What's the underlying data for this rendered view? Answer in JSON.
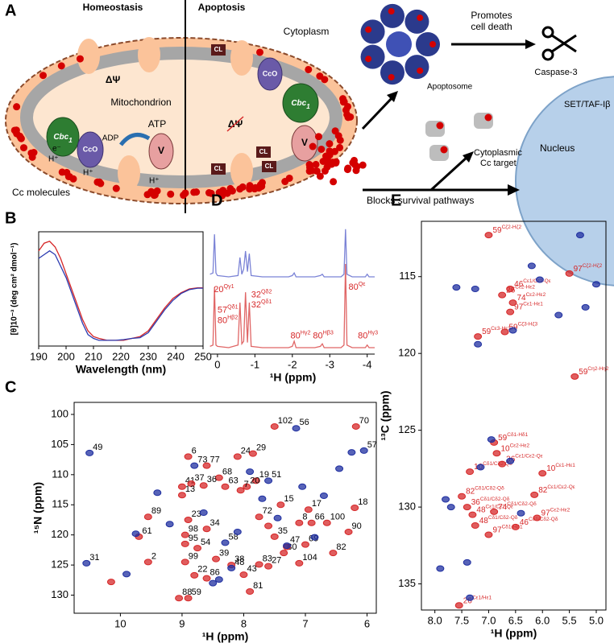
{
  "diagram": {
    "panel": "A",
    "left_title": "Homeostasis",
    "right_title": "Apoptosis",
    "cytoplasm": "Cytoplasm",
    "mitochondrion": "Mitochondrion",
    "delta_psi": "ΔΨ",
    "cbc1": {
      "text": "Cbc",
      "sub": "1"
    },
    "cco": "CcO",
    "v": "V",
    "cl": "CL",
    "adp": "ADP",
    "atp": "ATP",
    "h_plus": "H⁺",
    "e_minus": "e⁻",
    "cc_molecules": "Cc molecules",
    "apoptosome": "Apoptosome",
    "promotes": [
      "Promotes",
      "cell death"
    ],
    "caspase": "Caspase-3",
    "set": "SET/TAF-Iβ",
    "nucleus": "Nucleus",
    "cyto_target": [
      "Cytoplasmic",
      "Cc target"
    ],
    "blocks": "Blocks survival pathways"
  },
  "chart_data": [
    {
      "type": "line",
      "panel": "B",
      "xlabel": "Wavelength (nm)",
      "ylabel": "[θ]10⁻³ (deg cm² dmol⁻¹)",
      "xlim": [
        190,
        250
      ],
      "xticks": [
        190,
        200,
        210,
        220,
        230,
        240,
        250
      ],
      "ylim": [
        -15,
        15
      ],
      "x": [
        190,
        192,
        194,
        196,
        198,
        200,
        202,
        204,
        206,
        208,
        210,
        212,
        215,
        218,
        221,
        224,
        227,
        230,
        233,
        236,
        239,
        242,
        245,
        248,
        250
      ],
      "series": [
        {
          "color": "#d62728",
          "values": [
            10,
            12,
            12.5,
            11,
            8,
            4,
            0,
            -4,
            -8,
            -11,
            -12.5,
            -13,
            -13.5,
            -13.5,
            -13.5,
            -13,
            -12.5,
            -11,
            -8,
            -5,
            -2.5,
            -1,
            0,
            0.3,
            0.3
          ]
        },
        {
          "color": "#2b3ab0",
          "values": [
            8,
            9,
            10,
            9,
            6,
            3,
            -1,
            -5,
            -9,
            -12,
            -13,
            -13.5,
            -13.5,
            -13.5,
            -13.3,
            -13,
            -12.8,
            -11.5,
            -8.5,
            -5.5,
            -3,
            -1.2,
            -0.2,
            0.2,
            0.2
          ]
        }
      ]
    },
    {
      "type": "scatter",
      "panel": "C",
      "xlabel": "¹H (ppm)",
      "ylabel": "¹⁵N (ppm)",
      "xlim": [
        10.75,
        5.85
      ],
      "xticks": [
        10,
        9,
        8,
        7,
        6
      ],
      "ylim": [
        98,
        133
      ],
      "yticks": [
        100,
        105,
        110,
        115,
        120,
        125,
        130
      ],
      "series": [
        {
          "color": "#d62728",
          "x": [
            7.5,
            6.18,
            8.9,
            8.6,
            8.1,
            7.85,
            8.4,
            7.8,
            7.95,
            9.0,
            8.85,
            8.65,
            9.0,
            8.3,
            8.05,
            7.4,
            6.95,
            6.2,
            9.55,
            8.9,
            8.6,
            7.75,
            7.1,
            6.9,
            6.65,
            6.3,
            9.7,
            8.95,
            8.95,
            7.0,
            7.5,
            9.55,
            8.95,
            8.8,
            8.6,
            8.2,
            8.0,
            7.6,
            7.1,
            7.35,
            6.55,
            7.75,
            7.9,
            9.05,
            8.9,
            8.75,
            8.45,
            10.15,
            7.6,
            7.3
          ],
          "y": [
            102,
            102,
            107,
            108.5,
            107,
            106.5,
            110.5,
            111,
            112,
            112,
            111.5,
            111.8,
            113.4,
            112,
            112.6,
            115,
            115.8,
            115.5,
            117,
            117.5,
            119,
            117,
            118,
            118,
            118,
            119.5,
            120.3,
            120,
            121.5,
            121.6,
            120.3,
            124.5,
            124.5,
            126.7,
            127.2,
            125,
            126.6,
            125.2,
            124.7,
            123,
            123,
            124.9,
            129.4,
            130.5,
            130.5,
            122.2,
            124,
            127.8,
            118.5,
            122
          ],
          "labels": [
            "102",
            "70",
            "6",
            "77",
            "24",
            "29",
            "68",
            "19",
            "20",
            "41",
            "37",
            "36",
            "13",
            "63",
            "7",
            "15",
            "17",
            "18",
            "89",
            "23",
            "34",
            "72",
            "8",
            "66",
            "100",
            "90",
            "61",
            "98",
            "95",
            "69",
            "35",
            "2",
            "99",
            "22",
            "86",
            "38",
            "43",
            "27",
            "104",
            "80",
            "82",
            "83",
            "81",
            "88",
            "59",
            "54",
            "39",
            null,
            null,
            null
          ]
        },
        {
          "color": "#1f2fa0",
          "x": [
            7.15,
            6.05,
            10.5,
            10.55,
            7.3,
            8.2,
            8.3,
            7.6,
            8.8,
            9.4,
            9.9,
            8.5,
            7.7,
            7.05,
            6.45,
            6.7,
            9.2,
            8.1,
            7.45,
            6.85,
            8.65,
            9.75,
            6.25,
            7.9,
            8.4
          ],
          "y": [
            102.3,
            106,
            106.4,
            124.7,
            121.8,
            125.5,
            121.3,
            111,
            108.5,
            113,
            126.5,
            128,
            114,
            112,
            109,
            113.5,
            118.2,
            119.5,
            117.2,
            120.4,
            116.3,
            119.8,
            106.3,
            109.5,
            127.4
          ],
          "labels": [
            "56",
            "57",
            "49",
            "31",
            "47",
            "48",
            "58",
            "51",
            "73",
            null,
            null,
            null,
            null,
            null,
            null,
            null,
            null,
            null,
            null,
            null,
            null,
            null,
            null,
            null,
            null
          ]
        }
      ]
    },
    {
      "type": "line",
      "panel": "D",
      "xlabel": "¹H (ppm)",
      "xlim": [
        0.17,
        -4.2
      ],
      "xticks": [
        0,
        -1,
        -2,
        -3,
        -4
      ],
      "ylim": [
        0,
        100
      ],
      "x": [
        0.2,
        0.12,
        0.08,
        0.04,
        0,
        -0.3,
        -0.55,
        -0.6,
        -0.65,
        -0.7,
        -0.75,
        -0.8,
        -0.85,
        -0.9,
        -1.2,
        -1.9,
        -2.0,
        -2.05,
        -2.1,
        -2.6,
        -2.75,
        -2.8,
        -2.85,
        -3.3,
        -3.38,
        -3.42,
        -3.46,
        -3.6,
        -3.95,
        -4.0,
        -4.05,
        -4.2
      ],
      "series": [
        {
          "color": "#7b83d6",
          "values": [
            62,
            63,
            93,
            63,
            61,
            60,
            61,
            75,
            62,
            66,
            80,
            64,
            78,
            61,
            60,
            60,
            61,
            63,
            60,
            60,
            61,
            62,
            60,
            60,
            62,
            97,
            62,
            60,
            60,
            62,
            60,
            60
          ]
        },
        {
          "color": "#e06666",
          "values": [
            6,
            7,
            52,
            7,
            6,
            5,
            7,
            40,
            8,
            10,
            48,
            9,
            40,
            6,
            5,
            5,
            6,
            10,
            5,
            5,
            6,
            8,
            5,
            5,
            7,
            70,
            7,
            5,
            5,
            7,
            5,
            5
          ]
        }
      ],
      "annotations": [
        {
          "text": "20",
          "sup": "Qγ1",
          "x": 0.1,
          "y": 50
        },
        {
          "text": "57",
          "sup": "Qδ1",
          "x": 0.0,
          "y": 34
        },
        {
          "text": "80",
          "sup": "Hβ2",
          "x": 0.0,
          "y": 26
        },
        {
          "text": "32",
          "sup": "Qδ2",
          "x": -0.9,
          "y": 46
        },
        {
          "text": "32",
          "sup": "Qδ1",
          "x": -0.9,
          "y": 38
        },
        {
          "text": "80",
          "sup": "Hγ2",
          "x": -1.95,
          "y": 14
        },
        {
          "text": "80",
          "sup": "Hβ3",
          "x": -2.55,
          "y": 14
        },
        {
          "text": "80",
          "sup": "Qε",
          "x": -3.5,
          "y": 52
        },
        {
          "text": "80",
          "sup": "Hγ3",
          "x": -3.75,
          "y": 14
        }
      ]
    },
    {
      "type": "scatter",
      "panel": "E",
      "xlabel": "¹H (ppm)",
      "ylabel": "¹³C (ppm)",
      "xlim": [
        8.25,
        4.82
      ],
      "xticks": [
        {
          "value": 8,
          "label": "8.0"
        },
        7.5,
        {
          "value": 7,
          "label": "7.0"
        },
        6.5,
        {
          "value": 6,
          "label": "6.0"
        },
        5.5,
        {
          "value": 5,
          "label": "5.0"
        }
      ],
      "ylim": [
        111.4,
        136.7
      ],
      "yticks": [
        115,
        120,
        125,
        130,
        135
      ],
      "series": [
        {
          "color": "#d62728",
          "x": [
            7.0,
            5.5,
            6.6,
            6.75,
            6.55,
            6.6,
            7.2,
            6.7,
            5.4,
            6.9,
            6.85,
            6.75,
            7.35,
            6.0,
            7.5,
            6.15,
            7.4,
            6.9,
            7.3,
            6.1,
            7.25,
            6.5,
            7.0,
            7.55
          ],
          "y": [
            112.3,
            114.8,
            115.8,
            116.2,
            116.7,
            117.3,
            118.9,
            118.6,
            121.5,
            125.8,
            126.5,
            127.2,
            127.7,
            127.8,
            129.3,
            129.2,
            130.0,
            130.3,
            130.5,
            130.7,
            131.2,
            131.3,
            131.8,
            136.4
          ],
          "labels": [
            {
              "text": "59",
              "sup": "Cζ2-Hζ2"
            },
            {
              "text": "97",
              "sup": "Cζ2-Hζ2"
            },
            {
              "text": "46",
              "sup": "Cε1/Cε2-Qε"
            },
            {
              "text": "26",
              "sup": "Cε2-Hε2"
            },
            {
              "text": "74",
              "sup": "Cε2-Hε2"
            },
            {
              "text": "97",
              "sup": "Cε1-Hε1"
            },
            {
              "text": "59",
              "sup": "Cε3-Hε3"
            },
            {
              "text": "59",
              "sup": "Cζ3-Hζ3"
            },
            {
              "text": "59",
              "sup": "Cη2-Hη2"
            },
            {
              "text": "59",
              "sup": "Cδ1-Hδ1"
            },
            {
              "text": "10",
              "sup": "Cε2-Hε2"
            },
            {
              "text": "36",
              "sup": "Cε1/Cε2-Qε"
            },
            {
              "text": "10",
              "sup": "Cδ1/Cδ2-Qδ"
            },
            {
              "text": "10",
              "sup": "Cε1-Hε1"
            },
            {
              "text": "82",
              "sup": "Cδ1/Cδ2-Qδ"
            },
            {
              "text": "82",
              "sup": "Cε1/Cε2-Qε"
            },
            {
              "text": "36",
              "sup": "Cδ1/Cδ2-Qδ"
            },
            {
              "text": "74",
              "sup": "Cδ1/Cδ2-Qδ"
            },
            {
              "text": "48",
              "sup": "Cε1/Cε2-Qε"
            },
            {
              "text": "97",
              "sup": "Cε2-Hε2"
            },
            {
              "text": "48",
              "sup": "Cδ1/Cδ2-Qδ"
            },
            {
              "text": "46",
              "sup": "Cδ1/Cδ2-Qδ"
            },
            {
              "text": "97",
              "sup": "Cδ1-Hδ1"
            },
            {
              "text": "26",
              "sup": "Cε1/Hε1"
            }
          ]
        },
        {
          "color": "#1f2fa0",
          "x": [
            5.3,
            6.2,
            5.0,
            5.2,
            7.25,
            7.6,
            6.05,
            5.7,
            7.2,
            7.7,
            7.9,
            7.4,
            7.35,
            7.15,
            6.6,
            7.8,
            6.4,
            6.55,
            6.95
          ],
          "y": [
            112.3,
            114.3,
            115.5,
            117,
            115.8,
            115.7,
            115.2,
            117.5,
            119.4,
            130.0,
            134.0,
            133.6,
            135.9,
            127.4,
            127.0,
            129.5,
            130.4,
            118.5,
            125.6
          ],
          "labels": [
            null,
            null,
            null,
            null,
            null,
            null,
            null,
            null,
            null,
            null,
            null,
            null,
            null,
            null,
            null,
            null,
            null,
            null,
            null
          ]
        }
      ]
    }
  ]
}
